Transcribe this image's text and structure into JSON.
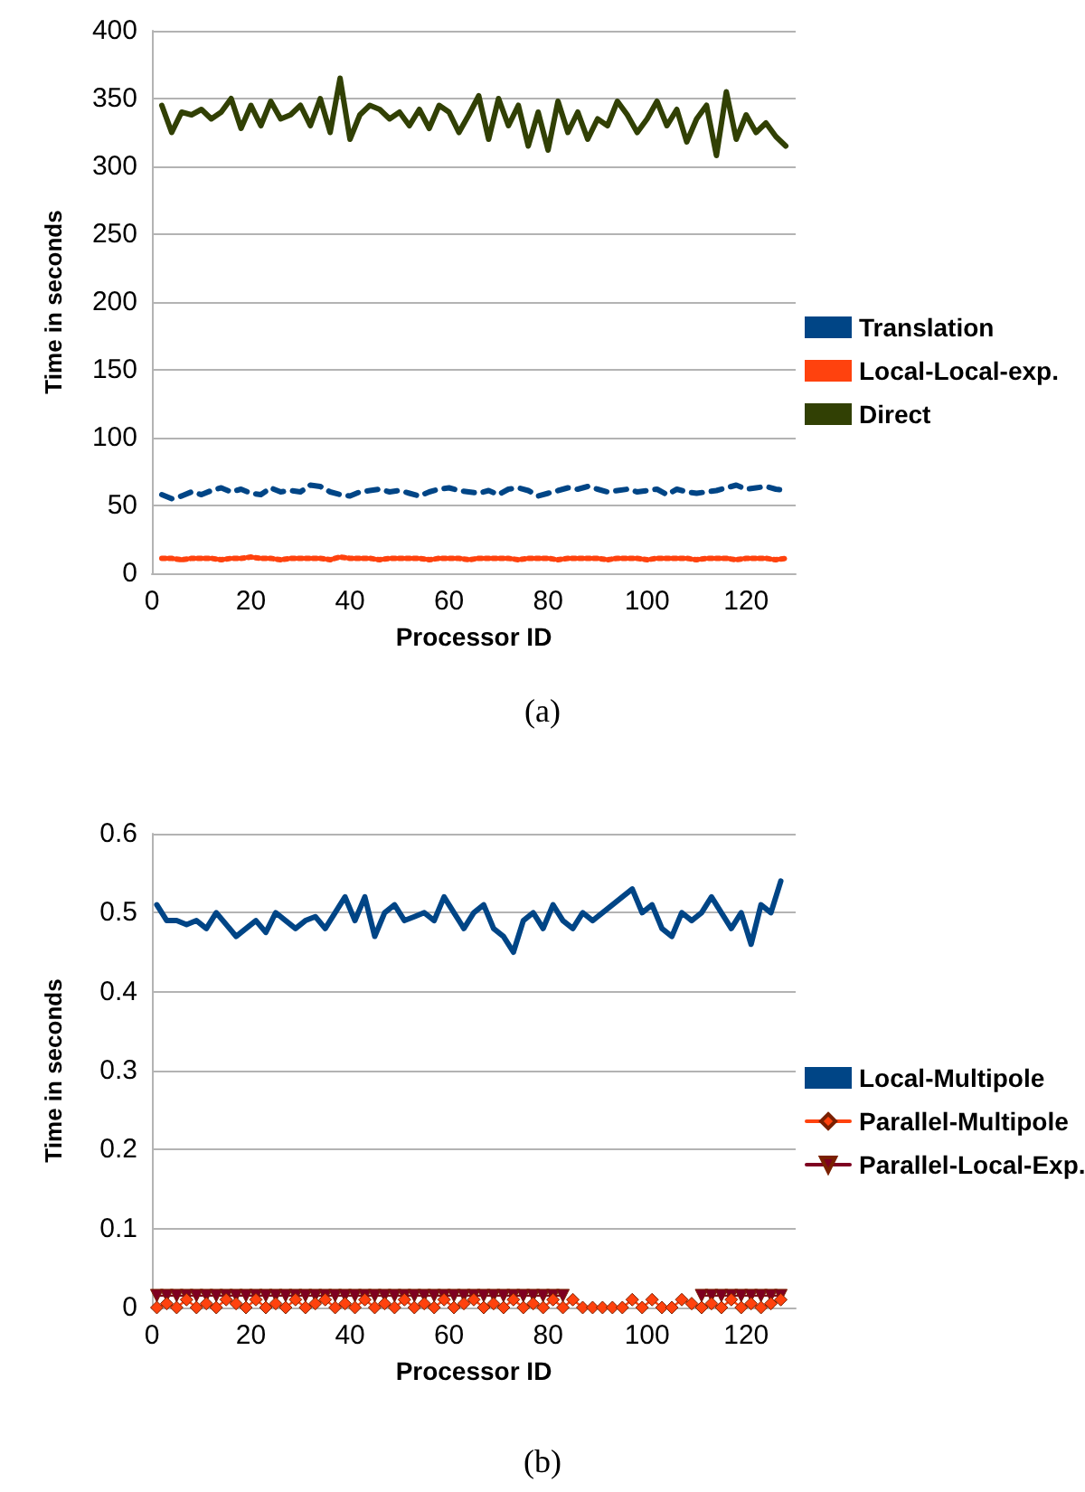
{
  "chart_data": [
    {
      "type": "line",
      "xlabel": "Processor ID",
      "ylabel": "Time in seconds",
      "annotations": [
        "(a)"
      ],
      "xlim": [
        0,
        130
      ],
      "xticks": [
        0,
        20,
        40,
        60,
        80,
        100,
        120
      ],
      "ylim": [
        0,
        400
      ],
      "yticks": [
        0,
        50,
        100,
        150,
        200,
        250,
        300,
        350,
        400
      ],
      "grid": "y",
      "legend": "right",
      "marker": "none",
      "x": [
        2,
        4,
        6,
        8,
        10,
        12,
        14,
        16,
        18,
        20,
        22,
        24,
        26,
        28,
        30,
        32,
        34,
        36,
        38,
        40,
        42,
        44,
        46,
        48,
        50,
        52,
        54,
        56,
        58,
        60,
        62,
        64,
        66,
        68,
        70,
        72,
        74,
        76,
        78,
        80,
        82,
        84,
        86,
        88,
        90,
        92,
        94,
        96,
        98,
        100,
        102,
        104,
        106,
        108,
        110,
        112,
        114,
        116,
        118,
        120,
        122,
        124,
        126,
        128
      ],
      "series": [
        {
          "name": "Translation",
          "color": "#004586",
          "line_style": "dashed",
          "values": [
            58,
            55,
            57,
            60,
            58,
            61,
            63,
            60,
            62,
            59,
            58,
            63,
            60,
            61,
            60,
            65,
            64,
            60,
            58,
            57,
            60,
            61,
            62,
            60,
            61,
            59,
            57,
            60,
            62,
            63,
            61,
            60,
            59,
            61,
            58,
            62,
            63,
            61,
            57,
            59,
            61,
            63,
            62,
            64,
            62,
            60,
            61,
            62,
            60,
            61,
            62,
            58,
            62,
            60,
            59,
            60,
            61,
            63,
            65,
            62,
            63,
            64,
            62,
            61
          ]
        },
        {
          "name": "Local-Local-exp.",
          "color": "#ff420e",
          "line_style": "dotted",
          "values": [
            11,
            11,
            10,
            11,
            11,
            11,
            10,
            11,
            11,
            12,
            11,
            11,
            10,
            11,
            11,
            11,
            11,
            10,
            12,
            11,
            11,
            11,
            10,
            11,
            11,
            11,
            11,
            10,
            11,
            11,
            11,
            10,
            11,
            11,
            11,
            11,
            10,
            11,
            11,
            11,
            10,
            11,
            11,
            11,
            11,
            10,
            11,
            11,
            11,
            10,
            11,
            11,
            11,
            11,
            10,
            11,
            11,
            11,
            10,
            11,
            11,
            11,
            10,
            11
          ]
        },
        {
          "name": "Direct",
          "color": "#314004",
          "line_style": "solid",
          "values": [
            345,
            325,
            340,
            338,
            342,
            335,
            340,
            350,
            328,
            345,
            330,
            348,
            335,
            338,
            345,
            330,
            350,
            325,
            365,
            320,
            338,
            345,
            342,
            335,
            340,
            330,
            342,
            328,
            345,
            340,
            325,
            338,
            352,
            320,
            350,
            330,
            345,
            315,
            340,
            312,
            348,
            325,
            340,
            320,
            335,
            330,
            348,
            338,
            325,
            335,
            348,
            330,
            342,
            318,
            335,
            345,
            308,
            355,
            320,
            338,
            325,
            332,
            322,
            315
          ]
        }
      ]
    },
    {
      "type": "line",
      "xlabel": "Processor ID",
      "ylabel": "Time in seconds",
      "annotations": [
        "(b)"
      ],
      "xlim": [
        0,
        130
      ],
      "xticks": [
        0,
        20,
        40,
        60,
        80,
        100,
        120
      ],
      "ylim": [
        0,
        0.6
      ],
      "yticks": [
        0,
        0.1,
        0.2,
        0.3,
        0.4,
        0.5,
        0.6
      ],
      "grid": "y",
      "legend": "right",
      "x": [
        1,
        3,
        5,
        7,
        9,
        11,
        13,
        15,
        17,
        19,
        21,
        23,
        25,
        27,
        29,
        31,
        33,
        35,
        37,
        39,
        41,
        43,
        45,
        47,
        49,
        51,
        53,
        55,
        57,
        59,
        61,
        63,
        65,
        67,
        69,
        71,
        73,
        75,
        77,
        79,
        81,
        83,
        85,
        87,
        89,
        91,
        93,
        95,
        97,
        99,
        101,
        103,
        105,
        107,
        109,
        111,
        113,
        115,
        117,
        119,
        121,
        123,
        125,
        127
      ],
      "series": [
        {
          "name": "Local-Multipole",
          "color": "#004586",
          "marker": "none",
          "values": [
            0.51,
            0.49,
            0.49,
            0.485,
            0.49,
            0.48,
            0.5,
            0.485,
            0.47,
            0.48,
            0.49,
            0.475,
            0.5,
            0.49,
            0.48,
            0.49,
            0.495,
            0.48,
            0.5,
            0.52,
            0.49,
            0.52,
            0.47,
            0.5,
            0.51,
            0.49,
            0.495,
            0.5,
            0.49,
            0.52,
            0.5,
            0.48,
            0.5,
            0.51,
            0.48,
            0.47,
            0.45,
            0.49,
            0.5,
            0.48,
            0.51,
            0.49,
            0.48,
            0.5,
            0.49,
            0.5,
            0.51,
            0.52,
            0.53,
            0.5,
            0.51,
            0.48,
            0.47,
            0.5,
            0.49,
            0.5,
            0.52,
            0.5,
            0.48,
            0.5,
            0.46,
            0.51,
            0.5,
            0.54
          ]
        },
        {
          "name": "Parallel-Multipole",
          "color": "#ff420e",
          "marker": "diamond",
          "values": [
            0,
            0.005,
            0,
            0.01,
            0,
            0.005,
            0,
            0.01,
            0.005,
            0,
            0.01,
            0,
            0.005,
            0,
            0.01,
            0,
            0.005,
            0.01,
            0,
            0.005,
            0,
            0.01,
            0,
            0.005,
            0,
            0.01,
            0,
            0.005,
            0,
            0.01,
            0,
            0.005,
            0.01,
            0,
            0.005,
            0,
            0.01,
            0,
            0.005,
            0,
            0.01,
            0,
            0.01,
            0,
            0,
            0,
            0,
            0,
            0.01,
            0,
            0.01,
            0,
            0,
            0.01,
            0.005,
            0,
            0.005,
            0,
            0.01,
            0,
            0.005,
            0,
            0.005,
            0.01
          ]
        },
        {
          "name": "Parallel-Local-Exp.",
          "color": "#7e0021",
          "marker": "triangle",
          "values": [
            0.015,
            0.015,
            0.015,
            0.015,
            0.015,
            0.015,
            0.015,
            0.015,
            0.015,
            0.015,
            0.015,
            0.015,
            0.015,
            0.015,
            0.015,
            0.015,
            0.015,
            0.015,
            0.015,
            0.015,
            0.015,
            0.015,
            0.015,
            0.015,
            0.015,
            0.015,
            0.015,
            0.015,
            0.015,
            0.015,
            0.015,
            0.015,
            0.015,
            0.015,
            0.015,
            0.015,
            0.015,
            0.015,
            0.015,
            0.015,
            0.015,
            0.015,
            null,
            null,
            null,
            null,
            null,
            null,
            null,
            null,
            null,
            null,
            null,
            null,
            null,
            0.015,
            0.015,
            0.015,
            0.015,
            0.015,
            0.015,
            0.015,
            0.015,
            0.015
          ]
        }
      ]
    }
  ]
}
